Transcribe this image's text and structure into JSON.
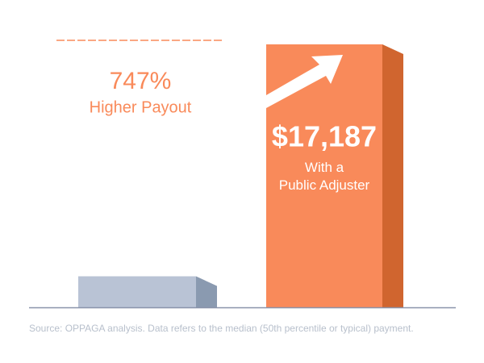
{
  "chart_data": {
    "type": "bar",
    "categories": [
      null,
      "With a\nPublic Adjuster"
    ],
    "values": [
      2029,
      17187
    ],
    "value_labels": [
      null,
      "$17,187"
    ],
    "colors": [
      "#b9c3d5",
      "#f98a5a"
    ],
    "side_colors": [
      "#8a9ab0",
      "#d0652f"
    ],
    "annotation_value": "747%",
    "annotation_text": "Higher Payout",
    "source": "Source: OPPAGA analysis. Data refers to the median (50th percentile or typical) payment."
  }
}
